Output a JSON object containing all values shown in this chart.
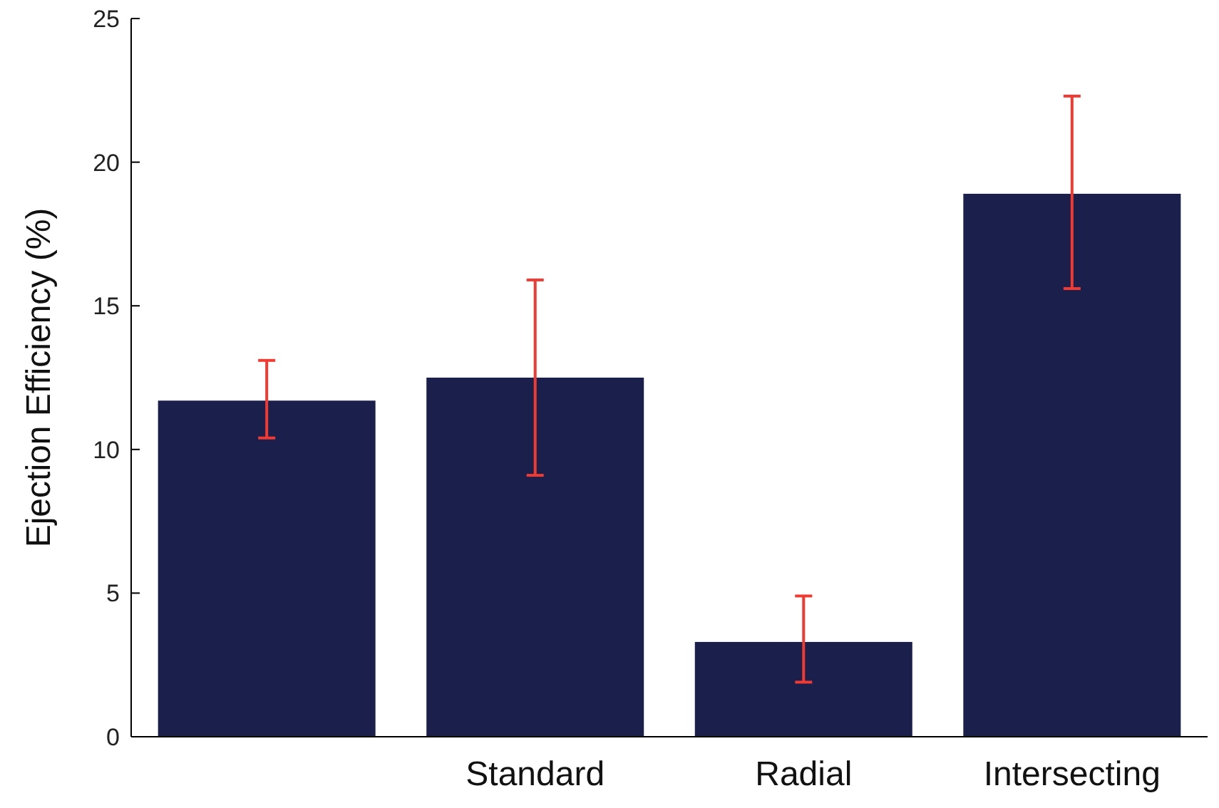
{
  "chart_data": {
    "type": "bar",
    "ylabel": "Ejection Efficiency (%)",
    "categories": [
      null,
      "Standard",
      "Radial",
      "Intersecting"
    ],
    "values": [
      11.7,
      12.5,
      3.3,
      18.9
    ],
    "errors": [
      [
        10.4,
        13.1
      ],
      [
        9.1,
        15.9
      ],
      [
        1.9,
        4.9
      ],
      [
        15.6,
        22.3
      ]
    ],
    "color": "#1b1f4b",
    "ylim": [
      0,
      25
    ],
    "yticks": [
      0,
      5,
      10,
      15,
      20,
      25
    ],
    "grid": false
  }
}
